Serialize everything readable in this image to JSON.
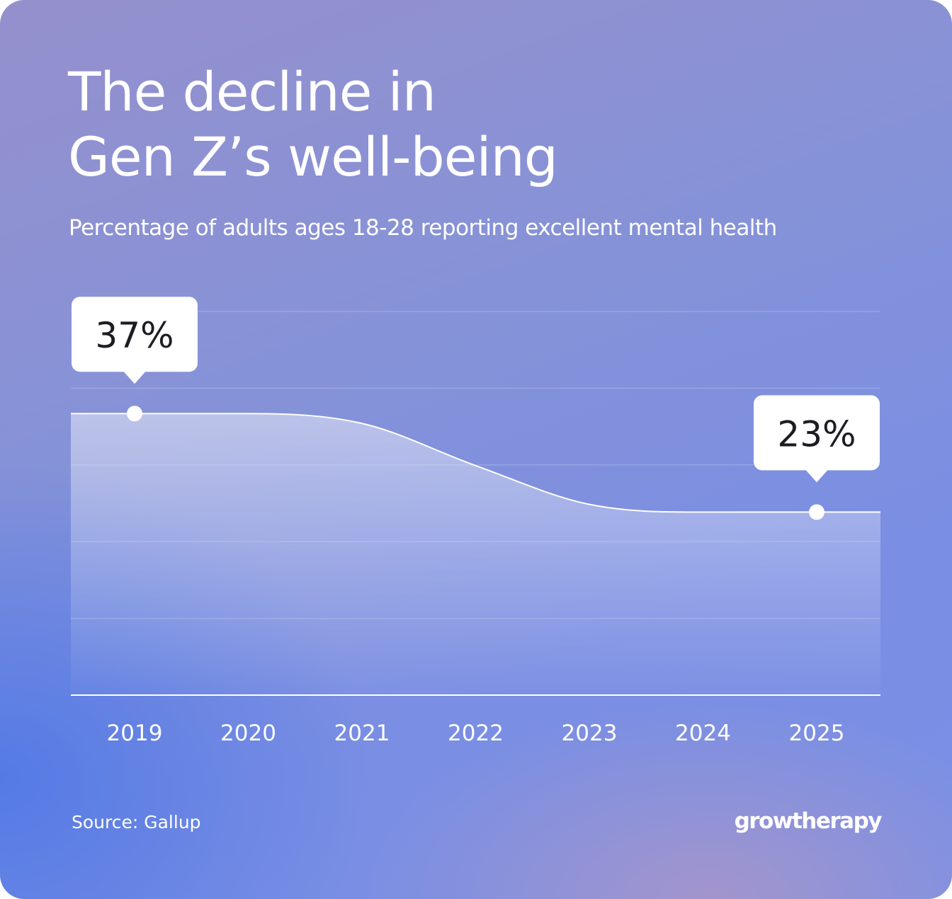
{
  "chart_data": {
    "type": "area",
    "title": "The decline in\nGen Z’s well-being",
    "subtitle": "Percentage of adults ages 18-28 reporting excellent mental health",
    "categories": [
      "2019",
      "2020",
      "2021",
      "2022",
      "2023",
      "2024",
      "2025"
    ],
    "x": [
      2019,
      2020,
      2021,
      2022,
      2023,
      2024,
      2025
    ],
    "values": [
      37,
      37,
      35.6,
      29.6,
      24.1,
      23,
      23
    ],
    "data_labels": [
      {
        "x": 2019,
        "label": "37%"
      },
      {
        "x": 2025,
        "label": "23%"
      }
    ],
    "xlabel": "",
    "ylabel": "",
    "ylim": [
      -3,
      51.5
    ],
    "grid": true,
    "colors": {
      "line": "#ffffff",
      "fill": "#ffffff",
      "callout": "#ffffff",
      "callout_text": "#1c1c22"
    }
  },
  "source": "Source: Gallup",
  "logo": "growtherapy"
}
